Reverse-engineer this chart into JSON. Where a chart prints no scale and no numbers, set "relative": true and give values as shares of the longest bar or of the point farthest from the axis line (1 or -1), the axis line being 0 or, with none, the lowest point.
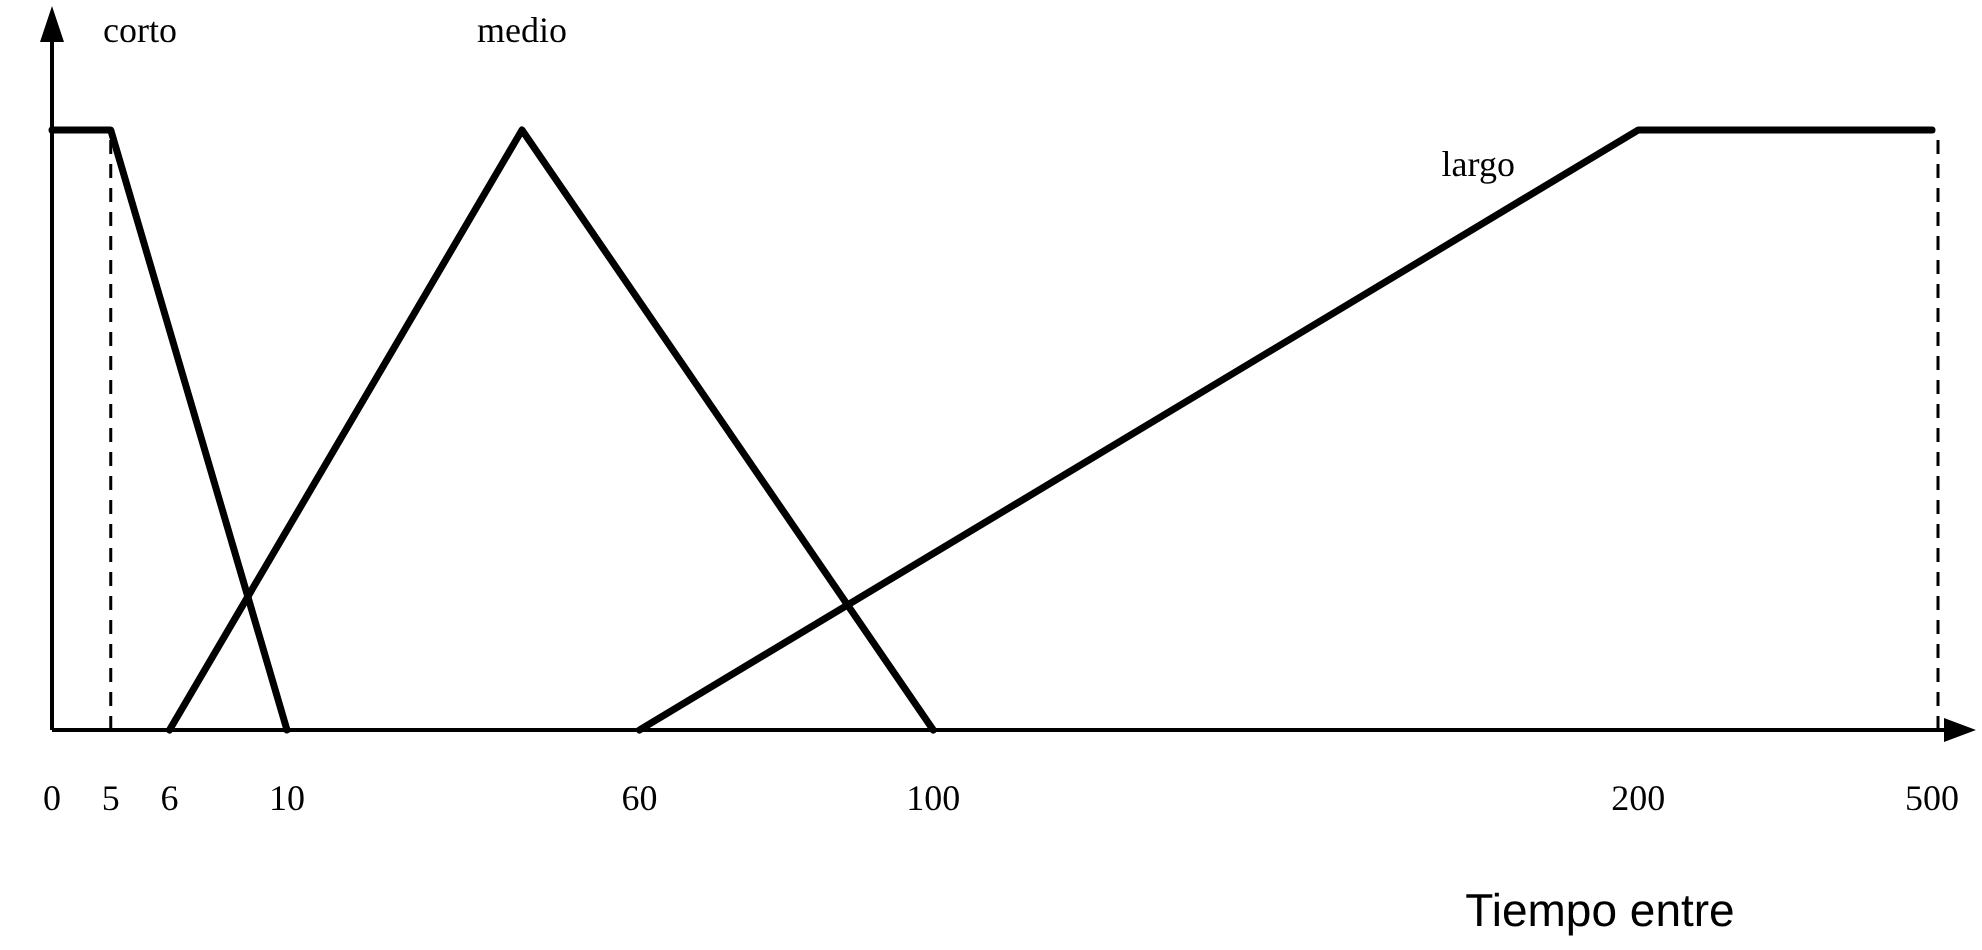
{
  "chart_data": {
    "type": "line",
    "relative": true,
    "xlabel": "Tiempo entre",
    "line_style": "solid",
    "categories": [
      "0",
      "5",
      "6",
      null,
      "10",
      null,
      null,
      null,
      null,
      null,
      "60",
      null,
      null,
      null,
      null,
      "100",
      null,
      null,
      null,
      null,
      null,
      null,
      null,
      null,
      null,
      null,
      null,
      "200",
      null,
      null,
      null,
      null,
      "500"
    ],
    "series": [
      {
        "name": "corto",
        "color": "#000000",
        "values": [
          1,
          1,
          null,
          null,
          0,
          null,
          null,
          null,
          null,
          null,
          null,
          null,
          null,
          null,
          null,
          null,
          null,
          null,
          null,
          null,
          null,
          null,
          null,
          null,
          null,
          null,
          null,
          null,
          null,
          null,
          null,
          null,
          null
        ]
      },
      {
        "name": "medio",
        "color": "#000000",
        "values": [
          null,
          null,
          0,
          null,
          null,
          null,
          null,
          null,
          1,
          null,
          null,
          null,
          null,
          null,
          null,
          0,
          null,
          null,
          null,
          null,
          null,
          null,
          null,
          null,
          null,
          null,
          null,
          null,
          null,
          null,
          null,
          null,
          null
        ]
      },
      {
        "name": "largo",
        "color": "#000000",
        "values": [
          null,
          null,
          null,
          null,
          null,
          null,
          null,
          null,
          null,
          null,
          0,
          null,
          null,
          null,
          null,
          null,
          null,
          null,
          null,
          null,
          null,
          null,
          null,
          null,
          null,
          null,
          null,
          1,
          null,
          null,
          null,
          null,
          1
        ]
      }
    ],
    "ref_lines": [
      {
        "axis": "x",
        "value": "5",
        "color": "#000000",
        "line_style": "dashed"
      },
      {
        "axis": "x",
        "value": "500",
        "color": "#000000",
        "line_style": "dashed"
      }
    ]
  }
}
